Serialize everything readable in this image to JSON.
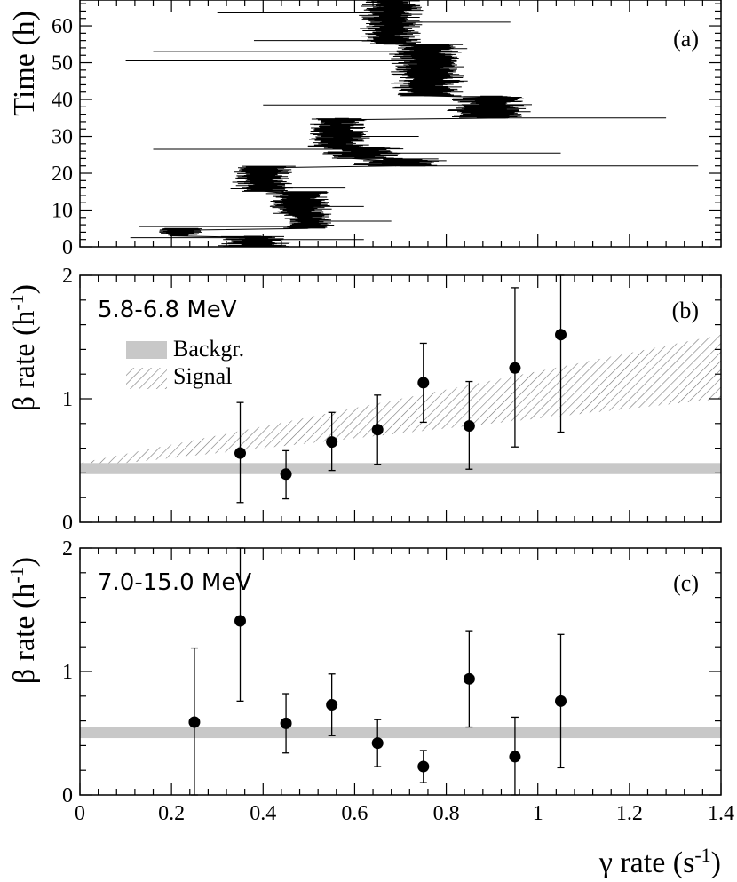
{
  "colors": {
    "background": "#ffffff",
    "ink": "#000000",
    "band": "#c8c8c8",
    "hatch": "#777777"
  },
  "chart_data": [
    {
      "id": "a",
      "type": "line",
      "panel_label": "(a)",
      "ylabel": "Time (h)",
      "xlim": [
        0,
        1.4
      ],
      "ylim": [
        0,
        67
      ],
      "yticks": [
        "0",
        "10",
        "20",
        "30",
        "40",
        "50",
        "60"
      ],
      "ytick_values": [
        0,
        10,
        20,
        30,
        40,
        50,
        60
      ],
      "segments": [
        {
          "t": [
            0,
            3
          ],
          "center": 0.38,
          "spread": 0.06
        },
        {
          "t": [
            3,
            5
          ],
          "center": 0.22,
          "spread": 0.04
        },
        {
          "t": [
            5,
            9
          ],
          "center": 0.5,
          "spread": 0.04
        },
        {
          "t": [
            9,
            15
          ],
          "center": 0.48,
          "spread": 0.05
        },
        {
          "t": [
            15,
            22
          ],
          "center": 0.4,
          "spread": 0.05
        },
        {
          "t": [
            22,
            24
          ],
          "center": 0.7,
          "spread": 0.08
        },
        {
          "t": [
            24,
            27
          ],
          "center": 0.62,
          "spread": 0.07
        },
        {
          "t": [
            27,
            35
          ],
          "center": 0.56,
          "spread": 0.05
        },
        {
          "t": [
            35,
            41
          ],
          "center": 0.9,
          "spread": 0.07
        },
        {
          "t": [
            41,
            55
          ],
          "center": 0.76,
          "spread": 0.06
        },
        {
          "t": [
            55,
            67
          ],
          "center": 0.68,
          "spread": 0.05
        }
      ],
      "outliers": [
        {
          "t": 2.0,
          "x": 0.62
        },
        {
          "t": 2.5,
          "x": 0.11
        },
        {
          "t": 5.5,
          "x": 0.13
        },
        {
          "t": 7.0,
          "x": 0.68
        },
        {
          "t": 11.0,
          "x": 0.62
        },
        {
          "t": 16.0,
          "x": 0.58
        },
        {
          "t": 22.0,
          "x": 1.35
        },
        {
          "t": 25.5,
          "x": 1.05
        },
        {
          "t": 26.5,
          "x": 0.16
        },
        {
          "t": 30.0,
          "x": 0.74
        },
        {
          "t": 35.0,
          "x": 1.28
        },
        {
          "t": 38.5,
          "x": 0.4
        },
        {
          "t": 43.5,
          "x": 0.75
        },
        {
          "t": 50.5,
          "x": 0.1
        },
        {
          "t": 53.0,
          "x": 0.16
        },
        {
          "t": 56.0,
          "x": 0.38
        },
        {
          "t": 61.0,
          "x": 0.94
        },
        {
          "t": 63.5,
          "x": 0.3
        }
      ]
    },
    {
      "id": "b",
      "type": "scatter",
      "panel_label": "(b)",
      "energy_range": "5.8-6.8 MeV",
      "ylabel": "β rate (h",
      "ylabel_sup": "-1",
      "ylabel_close": ")",
      "xlim": [
        0,
        1.4
      ],
      "ylim": [
        0,
        2
      ],
      "yticks": [
        "0",
        "1",
        "2"
      ],
      "ytick_values": [
        0,
        1,
        2
      ],
      "points": [
        {
          "x": 0.35,
          "y": 0.56,
          "ylo": 0.16,
          "yhi": 0.97
        },
        {
          "x": 0.45,
          "y": 0.39,
          "ylo": 0.19,
          "yhi": 0.58
        },
        {
          "x": 0.55,
          "y": 0.65,
          "ylo": 0.42,
          "yhi": 0.89
        },
        {
          "x": 0.65,
          "y": 0.75,
          "ylo": 0.47,
          "yhi": 1.03
        },
        {
          "x": 0.75,
          "y": 1.13,
          "ylo": 0.81,
          "yhi": 1.45
        },
        {
          "x": 0.85,
          "y": 0.78,
          "ylo": 0.43,
          "yhi": 1.14
        },
        {
          "x": 0.95,
          "y": 1.25,
          "ylo": 0.61,
          "yhi": 1.9
        },
        {
          "x": 1.05,
          "y": 1.52,
          "ylo": 0.73,
          "yhi": 2.0
        }
      ],
      "background_band": [
        0.39,
        0.48
      ],
      "signal_band": {
        "x0": 0,
        "lo0": 0.44,
        "hi0": 0.48,
        "x1": 1.4,
        "lo1": 1.0,
        "hi1": 1.52
      },
      "legend": [
        {
          "label": "Backgr.",
          "style": "band"
        },
        {
          "label": "Signal",
          "style": "hatch"
        }
      ]
    },
    {
      "id": "c",
      "type": "scatter",
      "panel_label": "(c)",
      "energy_range": "7.0-15.0 MeV",
      "ylabel": "β rate (h",
      "ylabel_sup": "-1",
      "ylabel_close": ")",
      "xlabel": "γ rate (s",
      "xlabel_sup": "-1",
      "xlabel_close": ")",
      "xlim": [
        0,
        1.4
      ],
      "ylim": [
        0,
        2
      ],
      "xticks": [
        "0",
        "0.2",
        "0.4",
        "0.6",
        "0.8",
        "1",
        "1.2",
        "1.4"
      ],
      "xtick_values": [
        0,
        0.2,
        0.4,
        0.6,
        0.8,
        1.0,
        1.2,
        1.4
      ],
      "yticks": [
        "0",
        "1",
        "2"
      ],
      "ytick_values": [
        0,
        1,
        2
      ],
      "points": [
        {
          "x": 0.25,
          "y": 0.59,
          "ylo": 0.0,
          "yhi": 1.19
        },
        {
          "x": 0.35,
          "y": 1.41,
          "ylo": 0.76,
          "yhi": 2.0
        },
        {
          "x": 0.45,
          "y": 0.58,
          "ylo": 0.34,
          "yhi": 0.82
        },
        {
          "x": 0.55,
          "y": 0.73,
          "ylo": 0.48,
          "yhi": 0.98
        },
        {
          "x": 0.65,
          "y": 0.42,
          "ylo": 0.23,
          "yhi": 0.61
        },
        {
          "x": 0.75,
          "y": 0.23,
          "ylo": 0.1,
          "yhi": 0.36
        },
        {
          "x": 0.85,
          "y": 0.94,
          "ylo": 0.55,
          "yhi": 1.33
        },
        {
          "x": 0.95,
          "y": 0.31,
          "ylo": 0.0,
          "yhi": 0.63
        },
        {
          "x": 1.05,
          "y": 0.76,
          "ylo": 0.22,
          "yhi": 1.3
        }
      ],
      "background_band": [
        0.46,
        0.55
      ]
    }
  ]
}
